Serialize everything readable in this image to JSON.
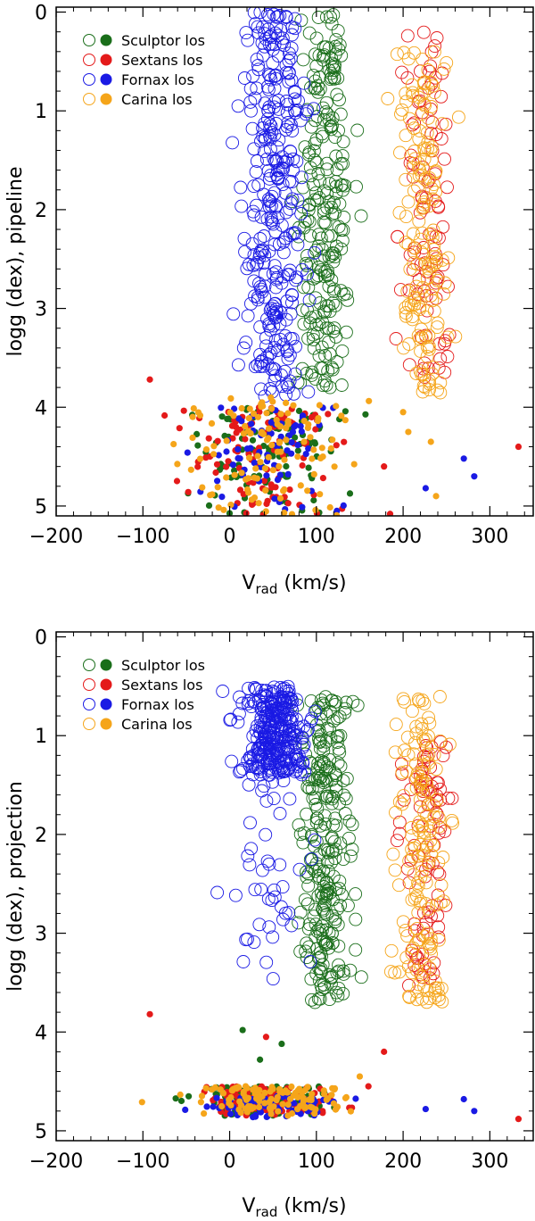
{
  "chart_data": [
    {
      "type": "scatter",
      "panel": "top",
      "xlabel_main": "V",
      "xlabel_sub": "rad",
      "xlabel_unit": " (km/s)",
      "ylabel": "logg (dex), pipeline",
      "xlim": [
        -200,
        350
      ],
      "ylim": [
        5.1,
        -0.05
      ],
      "y_inverted": true,
      "xticks": [
        -200,
        -100,
        0,
        100,
        200,
        300
      ],
      "yticks": [
        0,
        1,
        2,
        3,
        4,
        5
      ],
      "legend": [
        {
          "name": "Sculptor los",
          "color": "#1a6e1a"
        },
        {
          "name": "Sextans los",
          "color": "#e41a1a"
        },
        {
          "name": "Fornax los",
          "color": "#1a1ae4"
        },
        {
          "name": "Carina los",
          "color": "#f5a51a"
        }
      ],
      "legend_position": "top-left",
      "series": [
        {
          "name": "Sculptor los",
          "color": "#1a6e1a",
          "marker": "open",
          "x_center": 110,
          "x_spread": 15,
          "y_min": 0.0,
          "y_max": 3.8,
          "n": 230
        },
        {
          "name": "Sextans los",
          "color": "#e41a1a",
          "marker": "open",
          "x_center": 228,
          "x_spread": 14,
          "y_min": 0.2,
          "y_max": 3.7,
          "n": 90
        },
        {
          "name": "Fornax los",
          "color": "#1a1ae4",
          "marker": "open",
          "x_center": 52,
          "x_spread": 17,
          "y_min": 0.0,
          "y_max": 3.9,
          "n": 320
        },
        {
          "name": "Carina los",
          "color": "#f5a51a",
          "marker": "open",
          "x_center": 222,
          "x_spread": 14,
          "y_min": 0.4,
          "y_max": 3.9,
          "n": 160
        },
        {
          "name": "Sculptor los",
          "color": "#1a6e1a",
          "marker": "filled",
          "x_center": 40,
          "x_spread": 40,
          "y_min": 4.0,
          "y_max": 5.1,
          "n": 110
        },
        {
          "name": "Sextans los",
          "color": "#e41a1a",
          "marker": "filled",
          "x_center": 40,
          "x_spread": 42,
          "y_min": 4.0,
          "y_max": 5.1,
          "n": 110
        },
        {
          "name": "Fornax los",
          "color": "#1a1ae4",
          "marker": "filled",
          "x_center": 45,
          "x_spread": 38,
          "y_min": 4.0,
          "y_max": 5.1,
          "n": 70
        },
        {
          "name": "Carina los",
          "color": "#f5a51a",
          "marker": "filled",
          "x_center": 50,
          "x_spread": 45,
          "y_min": 3.9,
          "y_max": 5.1,
          "n": 120
        }
      ],
      "outliers": [
        {
          "x": -92,
          "y": 3.72,
          "color": "#e41a1a"
        },
        {
          "x": 333,
          "y": 4.4,
          "color": "#e41a1a"
        },
        {
          "x": 270,
          "y": 4.52,
          "color": "#1a1ae4"
        },
        {
          "x": 282,
          "y": 4.7,
          "color": "#1a1ae4"
        },
        {
          "x": 226,
          "y": 4.82,
          "color": "#1a1ae4"
        },
        {
          "x": 178,
          "y": 4.6,
          "color": "#e41a1a"
        },
        {
          "x": 185,
          "y": 5.08,
          "color": "#e41a1a"
        },
        {
          "x": 232,
          "y": 4.35,
          "color": "#f5a51a"
        },
        {
          "x": 206,
          "y": 4.25,
          "color": "#f5a51a"
        },
        {
          "x": 200,
          "y": 4.05,
          "color": "#f5a51a"
        },
        {
          "x": 58,
          "y": 3.08,
          "color": "#1a1ae4"
        },
        {
          "x": 238,
          "y": 4.9,
          "color": "#f5a51a"
        }
      ]
    },
    {
      "type": "scatter",
      "panel": "bottom",
      "xlabel_main": "V",
      "xlabel_sub": "rad",
      "xlabel_unit": " (km/s)",
      "ylabel": "logg (dex), projection",
      "xlim": [
        -200,
        350
      ],
      "ylim": [
        5.1,
        -0.05
      ],
      "y_inverted": true,
      "xticks": [
        -200,
        -100,
        0,
        100,
        200,
        300
      ],
      "yticks": [
        0,
        1,
        2,
        3,
        4,
        5
      ],
      "legend": [
        {
          "name": "Sculptor los",
          "color": "#1a6e1a"
        },
        {
          "name": "Sextans los",
          "color": "#e41a1a"
        },
        {
          "name": "Fornax los",
          "color": "#1a1ae4"
        },
        {
          "name": "Carina los",
          "color": "#f5a51a"
        }
      ],
      "legend_position": "top-left",
      "series": [
        {
          "name": "Sculptor los",
          "color": "#1a6e1a",
          "marker": "open",
          "x_center": 110,
          "x_spread": 15,
          "y_min": 0.6,
          "y_max": 3.7,
          "n": 260
        },
        {
          "name": "Sextans los",
          "color": "#e41a1a",
          "marker": "open",
          "x_center": 228,
          "x_spread": 14,
          "y_min": 1.0,
          "y_max": 3.6,
          "n": 90
        },
        {
          "name": "Fornax los",
          "color": "#1a1ae4",
          "marker": "open",
          "x_center": 52,
          "x_spread": 18,
          "y_min": 0.5,
          "y_max": 1.4,
          "n": 300
        },
        {
          "name": "Fornax los",
          "color": "#1a1ae4",
          "marker": "open",
          "x_center": 48,
          "x_spread": 22,
          "y_min": 1.4,
          "y_max": 3.6,
          "n": 45
        },
        {
          "name": "Carina los",
          "color": "#f5a51a",
          "marker": "open",
          "x_center": 222,
          "x_spread": 14,
          "y_min": 0.6,
          "y_max": 3.7,
          "n": 160
        },
        {
          "name": "Sculptor los",
          "color": "#1a6e1a",
          "marker": "filled",
          "x_center": 40,
          "x_spread": 40,
          "y_min": 4.55,
          "y_max": 4.85,
          "n": 120
        },
        {
          "name": "Sextans los",
          "color": "#e41a1a",
          "marker": "filled",
          "x_center": 40,
          "x_spread": 42,
          "y_min": 4.55,
          "y_max": 4.85,
          "n": 110
        },
        {
          "name": "Fornax los",
          "color": "#1a1ae4",
          "marker": "filled",
          "x_center": 45,
          "x_spread": 38,
          "y_min": 4.65,
          "y_max": 4.88,
          "n": 70
        },
        {
          "name": "Carina los",
          "color": "#f5a51a",
          "marker": "filled",
          "x_center": 50,
          "x_spread": 45,
          "y_min": 4.55,
          "y_max": 4.85,
          "n": 120
        }
      ],
      "outliers": [
        {
          "x": -92,
          "y": 3.82,
          "color": "#e41a1a"
        },
        {
          "x": 333,
          "y": 4.88,
          "color": "#e41a1a"
        },
        {
          "x": 270,
          "y": 4.68,
          "color": "#1a1ae4"
        },
        {
          "x": 282,
          "y": 4.8,
          "color": "#1a1ae4"
        },
        {
          "x": 226,
          "y": 4.78,
          "color": "#1a1ae4"
        },
        {
          "x": 178,
          "y": 4.2,
          "color": "#e41a1a"
        },
        {
          "x": 15,
          "y": 3.98,
          "color": "#1a6e1a"
        },
        {
          "x": 42,
          "y": 4.05,
          "color": "#e41a1a"
        },
        {
          "x": 60,
          "y": 4.12,
          "color": "#1a6e1a"
        },
        {
          "x": 35,
          "y": 4.28,
          "color": "#1a6e1a"
        },
        {
          "x": 160,
          "y": 4.55,
          "color": "#e41a1a"
        },
        {
          "x": 150,
          "y": 4.45,
          "color": "#f5a51a"
        }
      ]
    }
  ]
}
